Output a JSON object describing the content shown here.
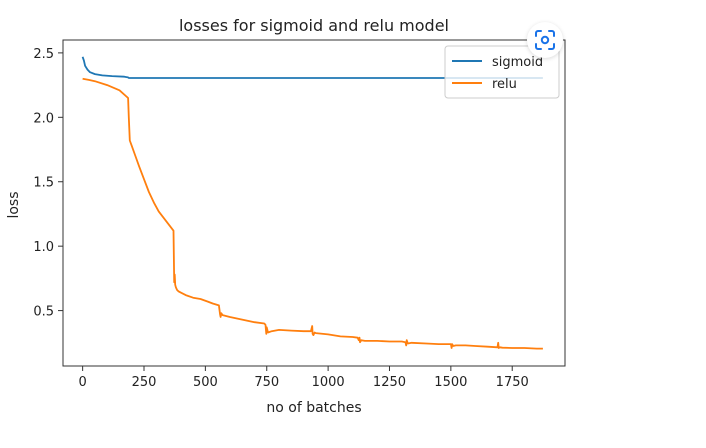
{
  "chart_data": {
    "type": "line",
    "title": "losses for sigmoid and relu model",
    "xlabel": "no of batches",
    "ylabel": "loss",
    "xlim": [
      -80,
      1965
    ],
    "ylim": [
      0.07,
      2.6
    ],
    "xticks": [
      0,
      250,
      500,
      750,
      1000,
      1250,
      1500,
      1750
    ],
    "xtick_labels": [
      "0",
      "250",
      "500",
      "750",
      "1000",
      "1250",
      "1500",
      "1750"
    ],
    "yticks": [
      0.5,
      1.0,
      1.5,
      2.0,
      2.5
    ],
    "ytick_labels": [
      "0.5",
      "1.0",
      "1.5",
      "2.0",
      "2.5"
    ],
    "grid": false,
    "legend_position": "top-right",
    "series": [
      {
        "name": "sigmoid",
        "color": "#1f77b4",
        "x": [
          0,
          5,
          10,
          20,
          30,
          50,
          80,
          120,
          170,
          185,
          188,
          400,
          800,
          1200,
          1600,
          1875
        ],
        "y": [
          2.47,
          2.44,
          2.4,
          2.37,
          2.35,
          2.335,
          2.325,
          2.32,
          2.315,
          2.31,
          2.305,
          2.305,
          2.305,
          2.305,
          2.305,
          2.305
        ]
      },
      {
        "name": "relu",
        "color": "#ff7f0e",
        "x": [
          0,
          25,
          50,
          100,
          150,
          185,
          188,
          192,
          200,
          215,
          230,
          250,
          270,
          290,
          310,
          330,
          350,
          370,
          373,
          375,
          377,
          380,
          385,
          390,
          400,
          420,
          450,
          480,
          510,
          530,
          555,
          560,
          562,
          565,
          570,
          600,
          650,
          700,
          740,
          745,
          748,
          750,
          755,
          770,
          800,
          850,
          900,
          930,
          935,
          937,
          940,
          945,
          950,
          1000,
          1050,
          1100,
          1120,
          1125,
          1128,
          1130,
          1135,
          1150,
          1200,
          1250,
          1300,
          1315,
          1318,
          1320,
          1325,
          1340,
          1400,
          1450,
          1500,
          1503,
          1505,
          1510,
          1520,
          1560,
          1600,
          1650,
          1690,
          1693,
          1695,
          1700,
          1710,
          1750,
          1800,
          1850,
          1875
        ],
        "y": [
          2.3,
          2.29,
          2.28,
          2.25,
          2.21,
          2.15,
          2.0,
          1.82,
          1.78,
          1.7,
          1.62,
          1.52,
          1.42,
          1.34,
          1.27,
          1.22,
          1.17,
          1.12,
          0.72,
          0.78,
          0.7,
          0.68,
          0.66,
          0.65,
          0.64,
          0.62,
          0.6,
          0.59,
          0.57,
          0.555,
          0.54,
          0.47,
          0.45,
          0.48,
          0.465,
          0.45,
          0.43,
          0.41,
          0.4,
          0.39,
          0.32,
          0.37,
          0.33,
          0.34,
          0.35,
          0.345,
          0.34,
          0.34,
          0.38,
          0.32,
          0.31,
          0.33,
          0.325,
          0.315,
          0.3,
          0.295,
          0.29,
          0.27,
          0.29,
          0.255,
          0.27,
          0.265,
          0.265,
          0.26,
          0.26,
          0.255,
          0.23,
          0.27,
          0.245,
          0.25,
          0.245,
          0.24,
          0.24,
          0.21,
          0.24,
          0.225,
          0.23,
          0.23,
          0.225,
          0.22,
          0.215,
          0.25,
          0.21,
          0.215,
          0.212,
          0.21,
          0.21,
          0.205,
          0.205
        ]
      }
    ]
  },
  "overlay": {
    "lens_icon": "google-lens-icon",
    "lens_color": "#1a73e8"
  }
}
